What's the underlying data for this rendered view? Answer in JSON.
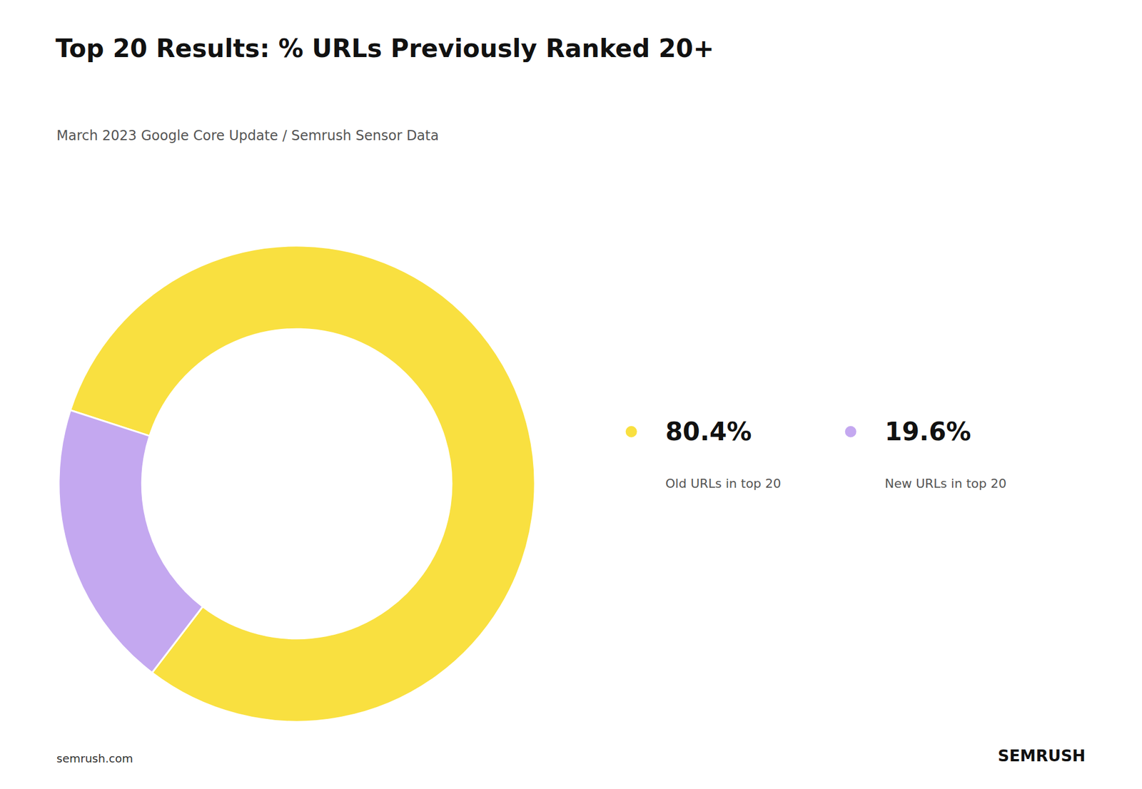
{
  "chart_data": {
    "type": "pie",
    "title": "Top 20 Results: % URLs Previously Ranked 20+",
    "subtitle": "March 2023 Google Core Update / Semrush Sensor Data",
    "categories": [
      "Old URLs in top 20",
      "New URLs in top 20"
    ],
    "values": [
      80.4,
      19.6
    ],
    "value_labels": [
      "80.4%",
      "19.6%"
    ],
    "colors": [
      "#F9E040",
      "#C4A8F0"
    ],
    "legend": "right",
    "annotations": [
      "semrush.com",
      "SEMRUSH"
    ]
  }
}
